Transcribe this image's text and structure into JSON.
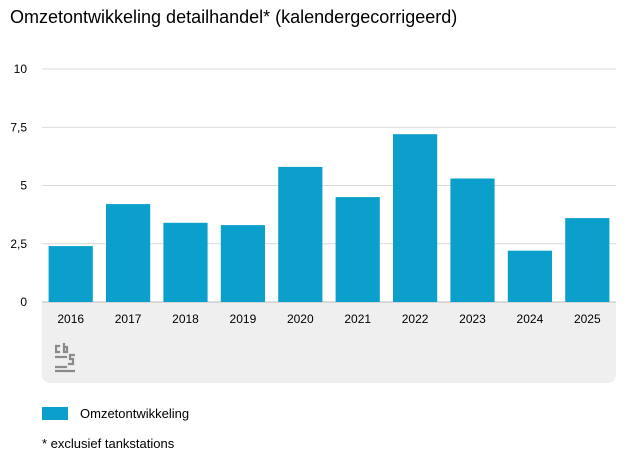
{
  "colors": {
    "bar": "#0b9fcb",
    "grid": "#d9d9d9",
    "band": "#efefef",
    "logo": "#888888"
  },
  "chart_data": {
    "type": "bar",
    "title": "Omzetontwikkeling detailhandel* (kalendergecorrigeerd)",
    "categories": [
      "2016",
      "2017",
      "2018",
      "2019",
      "2020",
      "2021",
      "2022",
      "2023",
      "2024",
      "2025"
    ],
    "series": [
      {
        "name": "Omzetontwikkeling",
        "values": [
          2.4,
          4.2,
          3.4,
          3.3,
          5.8,
          4.5,
          7.2,
          5.3,
          2.2,
          3.6
        ]
      }
    ],
    "y_ticks": [
      "0",
      "2,5",
      "5",
      "7,5",
      "10"
    ],
    "y_tick_values": [
      0,
      2.5,
      5,
      7.5,
      10
    ],
    "ylim": [
      0,
      10
    ],
    "xlabel": "",
    "ylabel": "",
    "grid": true,
    "legend_position": "bottom-left"
  },
  "footnote": "* exclusief tankstations",
  "logo_icon": "cbs-logo-icon"
}
